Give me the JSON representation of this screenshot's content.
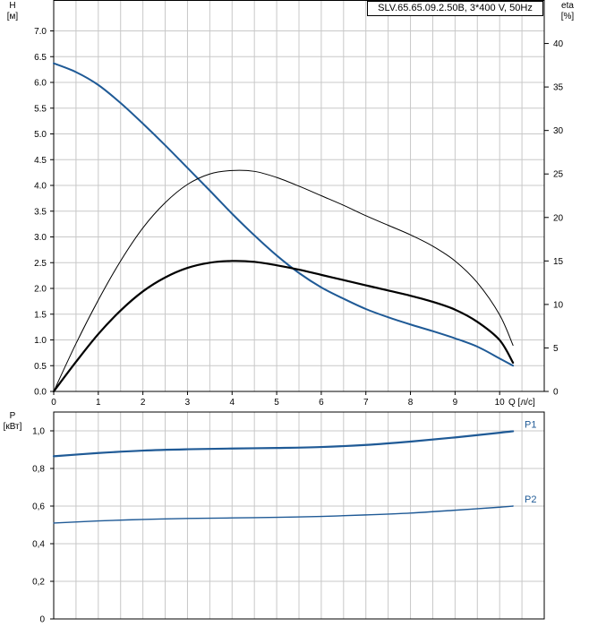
{
  "model_label": "SLV.65.65.09.2.50B, 3*400 V, 50Hz",
  "chart_data": [
    {
      "type": "line",
      "name_hint": "head-efficiency",
      "xlabel": "Q [л/с]",
      "ylabel": [
        "H",
        "[м]"
      ],
      "y2label": [
        "eta",
        "[%]"
      ],
      "xlim": [
        0,
        11
      ],
      "ylim": [
        0,
        7.6
      ],
      "y2lim": [
        0,
        45
      ],
      "xticks": [
        0,
        1,
        2,
        3,
        4,
        5,
        6,
        7,
        8,
        9,
        10
      ],
      "yticks": [
        0,
        0.5,
        1.0,
        1.5,
        2.0,
        2.5,
        3.0,
        3.5,
        4.0,
        4.5,
        5.0,
        5.5,
        6.0,
        6.5,
        7.0
      ],
      "ytick_labels": [
        "0.0",
        "0.5",
        "1.0",
        "1.5",
        "2.0",
        "2.5",
        "3.0",
        "3.5",
        "4.0",
        "4.5",
        "5.0",
        "5.5",
        "6.0",
        "6.5",
        "7.0"
      ],
      "y2ticks": [
        0,
        5,
        10,
        15,
        20,
        25,
        30,
        35,
        40
      ],
      "grid": true,
      "series": [
        {
          "axis": "left",
          "color": "#1f5a96",
          "width": 2,
          "x": [
            0,
            0.5,
            1,
            1.5,
            2,
            2.5,
            3,
            3.5,
            4,
            4.5,
            5,
            5.5,
            6,
            6.5,
            7,
            7.5,
            8,
            8.5,
            9,
            9.5,
            10,
            10.3
          ],
          "y": [
            6.37,
            6.2,
            5.95,
            5.6,
            5.2,
            4.78,
            4.34,
            3.9,
            3.45,
            3.03,
            2.64,
            2.3,
            2.02,
            1.8,
            1.6,
            1.44,
            1.3,
            1.17,
            1.03,
            0.87,
            0.64,
            0.5
          ]
        },
        {
          "axis": "right",
          "color": "#000000",
          "width": 1,
          "x": [
            0,
            0.5,
            1,
            1.5,
            2,
            2.5,
            3,
            3.5,
            4,
            4.5,
            5,
            5.5,
            6,
            6.5,
            7,
            7.5,
            8,
            8.5,
            9,
            9.5,
            10,
            10.3
          ],
          "y": [
            0,
            5.5,
            10.5,
            15,
            18.8,
            21.7,
            23.8,
            25,
            25.4,
            25.3,
            24.6,
            23.6,
            22.5,
            21.4,
            20.2,
            19.1,
            18,
            16.7,
            15,
            12.5,
            8.8,
            5.3
          ]
        },
        {
          "axis": "right",
          "color": "#000000",
          "width": 2.2,
          "x": [
            0,
            0.5,
            1,
            1.5,
            2,
            2.5,
            3,
            3.5,
            4,
            4.5,
            5,
            5.5,
            6,
            6.5,
            7,
            7.5,
            8,
            8.5,
            9,
            9.5,
            10,
            10.3
          ],
          "y": [
            0,
            3.4,
            6.6,
            9.3,
            11.5,
            13.1,
            14.2,
            14.8,
            15,
            14.9,
            14.5,
            14,
            13.4,
            12.8,
            12.2,
            11.6,
            11,
            10.3,
            9.4,
            8,
            5.9,
            3.3
          ]
        }
      ]
    },
    {
      "type": "line",
      "name_hint": "power",
      "ylabel": [
        "P",
        "[кВт]"
      ],
      "xlim": [
        0,
        11
      ],
      "ylim": [
        0,
        1.1
      ],
      "yticks": [
        0,
        0.2,
        0.4,
        0.6,
        0.8,
        1.0
      ],
      "ytick_labels": [
        "0",
        "0,2",
        "0,4",
        "0,6",
        "0,8",
        "1,0"
      ],
      "xticks": [
        0,
        1,
        2,
        3,
        4,
        5,
        6,
        7,
        8,
        9,
        10
      ],
      "grid": true,
      "series": [
        {
          "name": "P1",
          "color": "#1f5a96",
          "width": 2.2,
          "x": [
            0,
            1,
            2,
            3,
            4,
            5,
            6,
            7,
            8,
            9,
            10,
            10.3
          ],
          "y": [
            0.865,
            0.882,
            0.895,
            0.902,
            0.906,
            0.909,
            0.914,
            0.925,
            0.943,
            0.965,
            0.99,
            0.998
          ]
        },
        {
          "name": "P2",
          "color": "#1f5a96",
          "width": 1.4,
          "x": [
            0,
            1,
            2,
            3,
            4,
            5,
            6,
            7,
            8,
            9,
            10,
            10.3
          ],
          "y": [
            0.51,
            0.521,
            0.529,
            0.534,
            0.537,
            0.54,
            0.545,
            0.553,
            0.563,
            0.578,
            0.594,
            0.6
          ]
        }
      ]
    }
  ]
}
